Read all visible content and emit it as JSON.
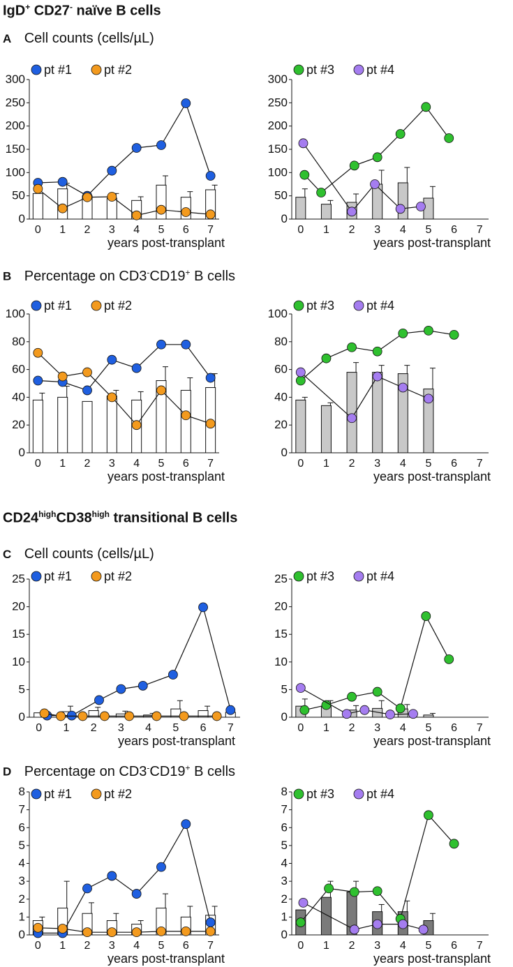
{
  "sections": [
    {
      "title_main": "IgD",
      "title_sup1": "+",
      "title_mid": " CD27",
      "title_sup2": "-",
      "title_end": " naïve B cells"
    },
    {
      "title_main": "CD24",
      "title_sup1": "high",
      "title_mid": "CD38",
      "title_sup2": "high",
      "title_end": " transitional B cells"
    }
  ],
  "panels": [
    {
      "letter": "A",
      "title": "Cell counts (cells/µL)"
    },
    {
      "letter": "B",
      "title_a": "Percentage on CD3",
      "title_sup1": "-",
      "title_b": "CD19",
      "title_sup2": "+",
      "title_c": " B cells"
    },
    {
      "letter": "C",
      "title": "Cell counts (cells/µL)"
    },
    {
      "letter": "D",
      "title_a": "Percentage on CD3",
      "title_sup1": "-",
      "title_b": "CD19",
      "title_sup2": "+",
      "title_c": " B cells"
    }
  ],
  "colors": {
    "pt1": "#1f5fe0",
    "pt2": "#f39a1e",
    "pt3": "#2fc02f",
    "pt4": "#a57df0",
    "bar_white": "#ffffff",
    "bar_light": "#c8c8c8",
    "bar_dark": "#7a7a7a"
  },
  "chart_data": [
    {
      "type": "bar+line",
      "panel": "A",
      "side": "left",
      "xlabel": "years post-transplant",
      "ylim": [
        0,
        300
      ],
      "yticks": [
        0,
        50,
        100,
        150,
        200,
        250,
        300
      ],
      "xticks": [
        0,
        1,
        2,
        3,
        4,
        5,
        6,
        7
      ],
      "bar_color": "white",
      "bars": [
        {
          "x": 0,
          "value": 55,
          "err": 0
        },
        {
          "x": 1,
          "value": 65,
          "err": 12
        },
        {
          "x": 2,
          "value": 50,
          "err": 0
        },
        {
          "x": 3,
          "value": 45,
          "err": 10
        },
        {
          "x": 4,
          "value": 40,
          "err": 8
        },
        {
          "x": 5,
          "value": 73,
          "err": 20
        },
        {
          "x": 6,
          "value": 47,
          "err": 12
        },
        {
          "x": 7,
          "value": 63,
          "err": 10
        }
      ],
      "series": [
        {
          "name": "pt #1",
          "color_key": "pt1",
          "points": [
            [
              0,
              78
            ],
            [
              1,
              80
            ],
            [
              2,
              50
            ],
            [
              3,
              104
            ],
            [
              4,
              153
            ],
            [
              5,
              159
            ],
            [
              6,
              249
            ],
            [
              7,
              93
            ]
          ]
        },
        {
          "name": "pt #2",
          "color_key": "pt2",
          "points": [
            [
              0,
              65
            ],
            [
              1,
              23
            ],
            [
              2,
              47
            ],
            [
              3,
              48
            ],
            [
              4,
              8
            ],
            [
              5,
              20
            ],
            [
              6,
              15
            ],
            [
              7,
              10
            ]
          ]
        }
      ]
    },
    {
      "type": "bar+line",
      "panel": "A",
      "side": "right",
      "xlabel": "years post-transplant",
      "ylim": [
        0,
        300
      ],
      "yticks": [
        0,
        50,
        100,
        150,
        200,
        250,
        300
      ],
      "xticks": [
        0,
        1,
        2,
        3,
        4,
        5,
        6,
        7
      ],
      "bar_color": "light",
      "bars": [
        {
          "x": 0,
          "value": 47,
          "err": 18
        },
        {
          "x": 1,
          "value": 32,
          "err": 8
        },
        {
          "x": 2,
          "value": 36,
          "err": 18
        },
        {
          "x": 3,
          "value": 75,
          "err": 30
        },
        {
          "x": 4,
          "value": 78,
          "err": 33
        },
        {
          "x": 5,
          "value": 45,
          "err": 25
        }
      ],
      "series": [
        {
          "name": "pt #3",
          "color_key": "pt3",
          "points": [
            [
              0.15,
              95
            ],
            [
              0.8,
              57
            ],
            [
              2.1,
              115
            ],
            [
              3.0,
              133
            ],
            [
              3.9,
              183
            ],
            [
              4.9,
              241
            ],
            [
              5.8,
              174
            ]
          ]
        },
        {
          "name": "pt #4",
          "color_key": "pt4",
          "points": [
            [
              0.1,
              163
            ],
            [
              2.0,
              16
            ],
            [
              2.9,
              75
            ],
            [
              3.9,
              22
            ],
            [
              4.7,
              27
            ]
          ]
        }
      ]
    },
    {
      "type": "bar+line",
      "panel": "B",
      "side": "left",
      "xlabel": "years post-transplant",
      "ylim": [
        0,
        100
      ],
      "yticks": [
        0,
        20,
        40,
        60,
        80,
        100
      ],
      "xticks": [
        0,
        1,
        2,
        3,
        4,
        5,
        6,
        7
      ],
      "bar_color": "white",
      "bars": [
        {
          "x": 0,
          "value": 38,
          "err": 5
        },
        {
          "x": 1,
          "value": 40,
          "err": 8
        },
        {
          "x": 2,
          "value": 37,
          "err": 0
        },
        {
          "x": 3,
          "value": 41,
          "err": 4
        },
        {
          "x": 4,
          "value": 38,
          "err": 6
        },
        {
          "x": 5,
          "value": 52,
          "err": 10
        },
        {
          "x": 6,
          "value": 45,
          "err": 9
        },
        {
          "x": 7,
          "value": 47,
          "err": 10
        }
      ],
      "series": [
        {
          "name": "pt #1",
          "color_key": "pt1",
          "points": [
            [
              0,
              52
            ],
            [
              1,
              51
            ],
            [
              2,
              45
            ],
            [
              3,
              67
            ],
            [
              4,
              61
            ],
            [
              5,
              78
            ],
            [
              6,
              78
            ],
            [
              7,
              54
            ]
          ]
        },
        {
          "name": "pt #2",
          "color_key": "pt2",
          "points": [
            [
              0,
              72
            ],
            [
              1,
              55
            ],
            [
              2,
              58
            ],
            [
              3,
              40
            ],
            [
              4,
              20
            ],
            [
              5,
              45
            ],
            [
              6,
              27
            ],
            [
              7,
              21
            ]
          ]
        }
      ]
    },
    {
      "type": "bar+line",
      "panel": "B",
      "side": "right",
      "xlabel": "years post-transplant",
      "ylim": [
        0,
        100
      ],
      "yticks": [
        0,
        20,
        40,
        60,
        80,
        100
      ],
      "xticks": [
        0,
        1,
        2,
        3,
        4,
        5,
        6,
        7
      ],
      "bar_color": "light",
      "bars": [
        {
          "x": 0,
          "value": 38,
          "err": 2
        },
        {
          "x": 1,
          "value": 34,
          "err": 2
        },
        {
          "x": 2,
          "value": 58,
          "err": 7
        },
        {
          "x": 3,
          "value": 58,
          "err": 5
        },
        {
          "x": 4,
          "value": 57,
          "err": 6
        },
        {
          "x": 5,
          "value": 46,
          "err": 15
        }
      ],
      "series": [
        {
          "name": "pt #3",
          "color_key": "pt3",
          "points": [
            [
              0,
              52
            ],
            [
              1,
              68
            ],
            [
              2,
              76
            ],
            [
              3,
              73
            ],
            [
              4,
              86
            ],
            [
              5,
              88
            ],
            [
              6,
              85
            ]
          ]
        },
        {
          "name": "pt #4",
          "color_key": "pt4",
          "points": [
            [
              0,
              58
            ],
            [
              2,
              25
            ],
            [
              3,
              55
            ],
            [
              4,
              47
            ],
            [
              5,
              39
            ]
          ]
        }
      ]
    },
    {
      "type": "bar+line",
      "panel": "C",
      "side": "left",
      "xlabel": "years post-transplant",
      "ylim": [
        0,
        25
      ],
      "yticks": [
        0,
        5,
        10,
        15,
        20,
        25
      ],
      "xticks": [
        0,
        1,
        2,
        3,
        4,
        5,
        6,
        7
      ],
      "bar_color": "white",
      "bars": [
        {
          "x": 0,
          "value": 0.8,
          "err": 0.2
        },
        {
          "x": 1,
          "value": 1.0,
          "err": 1.0
        },
        {
          "x": 2,
          "value": 1.2,
          "err": 0.6
        },
        {
          "x": 3,
          "value": 0.6,
          "err": 0.5
        },
        {
          "x": 4,
          "value": 0.4,
          "err": 0.3
        },
        {
          "x": 5,
          "value": 1.5,
          "err": 1.5
        },
        {
          "x": 6,
          "value": 1.2,
          "err": 0.8
        },
        {
          "x": 7,
          "value": 0.9,
          "err": 0
        }
      ],
      "series": [
        {
          "name": "pt #1",
          "color_key": "pt1",
          "points": [
            [
              0.3,
              0.3
            ],
            [
              1.2,
              0.3
            ],
            [
              2.2,
              3.1
            ],
            [
              3.0,
              5.1
            ],
            [
              3.8,
              5.7
            ],
            [
              4.9,
              7.7
            ],
            [
              6.0,
              19.9
            ],
            [
              7.0,
              1.3
            ]
          ]
        },
        {
          "name": "pt #2",
          "color_key": "pt2",
          "points": [
            [
              0.2,
              0.7
            ],
            [
              0.8,
              0.2
            ],
            [
              1.6,
              0.2
            ],
            [
              2.4,
              0.2
            ],
            [
              3.3,
              0.2
            ],
            [
              4.3,
              0.2
            ],
            [
              5.3,
              0.2
            ],
            [
              6.5,
              0.2
            ]
          ]
        }
      ]
    },
    {
      "type": "bar+line",
      "panel": "C",
      "side": "right",
      "xlabel": "years post-transplant",
      "ylim": [
        0,
        25
      ],
      "yticks": [
        0,
        5,
        10,
        15,
        20,
        25
      ],
      "xticks": [
        0,
        1,
        2,
        3,
        4,
        5,
        6,
        7
      ],
      "bar_color": "light",
      "bars": [
        {
          "x": 0,
          "value": 2.0,
          "err": 1.3
        },
        {
          "x": 1,
          "value": 2.0,
          "err": 1.0
        },
        {
          "x": 2,
          "value": 1.3,
          "err": 0.8
        },
        {
          "x": 3,
          "value": 1.6,
          "err": 1.4
        },
        {
          "x": 4,
          "value": 1.5,
          "err": 0.8
        },
        {
          "x": 5,
          "value": 0.4,
          "err": 0.3
        }
      ],
      "series": [
        {
          "name": "pt #3",
          "color_key": "pt3",
          "points": [
            [
              0.15,
              1.3
            ],
            [
              1.0,
              2.2
            ],
            [
              2.0,
              3.7
            ],
            [
              3.0,
              4.6
            ],
            [
              3.9,
              1.6
            ],
            [
              4.9,
              18.3
            ],
            [
              5.8,
              10.5
            ]
          ]
        },
        {
          "name": "pt #4",
          "color_key": "pt4",
          "points": [
            [
              0.0,
              5.3
            ],
            [
              1.8,
              0.6
            ],
            [
              2.5,
              1.3
            ],
            [
              3.5,
              0.5
            ],
            [
              4.4,
              0.6
            ]
          ]
        }
      ]
    },
    {
      "type": "bar+line",
      "panel": "D",
      "side": "left",
      "xlabel": "years post-transplant",
      "ylim": [
        0,
        8
      ],
      "yticks": [
        0,
        1,
        2,
        3,
        4,
        5,
        6,
        7,
        8
      ],
      "xticks": [
        0,
        1,
        2,
        3,
        4,
        5,
        6,
        7
      ],
      "bar_color": "white",
      "bars": [
        {
          "x": 0,
          "value": 0.8,
          "err": 0.2
        },
        {
          "x": 1,
          "value": 1.5,
          "err": 1.5
        },
        {
          "x": 2,
          "value": 1.2,
          "err": 0.6
        },
        {
          "x": 3,
          "value": 0.8,
          "err": 0.4
        },
        {
          "x": 4,
          "value": 0.6,
          "err": 0.2
        },
        {
          "x": 5,
          "value": 1.5,
          "err": 0.8
        },
        {
          "x": 6,
          "value": 1.0,
          "err": 0.6
        },
        {
          "x": 7,
          "value": 1.1,
          "err": 0.5
        }
      ],
      "series": [
        {
          "name": "pt #1",
          "color_key": "pt1",
          "points": [
            [
              0,
              0.1
            ],
            [
              1,
              0.1
            ],
            [
              2,
              2.6
            ],
            [
              3,
              3.3
            ],
            [
              4,
              2.3
            ],
            [
              5,
              3.8
            ],
            [
              6,
              6.2
            ],
            [
              7,
              0.7
            ]
          ]
        },
        {
          "name": "pt #2",
          "color_key": "pt2",
          "points": [
            [
              0,
              0.4
            ],
            [
              1,
              0.35
            ],
            [
              2,
              0.15
            ],
            [
              3,
              0.15
            ],
            [
              4,
              0.15
            ],
            [
              5,
              0.2
            ],
            [
              6,
              0.2
            ],
            [
              7,
              0.2
            ]
          ]
        }
      ]
    },
    {
      "type": "bar+line",
      "panel": "D",
      "side": "right",
      "xlabel": "years post-transplant",
      "ylim": [
        0,
        8
      ],
      "yticks": [
        0,
        1,
        2,
        3,
        4,
        5,
        6,
        7,
        8
      ],
      "xticks": [
        0,
        1,
        2,
        3,
        4,
        5,
        6,
        7
      ],
      "bar_color": "dark",
      "bars": [
        {
          "x": 0,
          "value": 1.4,
          "err": 0
        },
        {
          "x": 1,
          "value": 2.1,
          "err": 0.9
        },
        {
          "x": 2,
          "value": 2.4,
          "err": 0.6
        },
        {
          "x": 3,
          "value": 1.3,
          "err": 0.4
        },
        {
          "x": 4,
          "value": 1.3,
          "err": 0.6
        },
        {
          "x": 5,
          "value": 0.8,
          "err": 0.4
        }
      ],
      "series": [
        {
          "name": "pt #3",
          "color_key": "pt3",
          "points": [
            [
              0,
              0.7
            ],
            [
              1.1,
              2.6
            ],
            [
              2.1,
              2.4
            ],
            [
              3.0,
              2.45
            ],
            [
              3.9,
              0.9
            ],
            [
              5.0,
              6.7
            ],
            [
              6.0,
              5.1
            ]
          ]
        },
        {
          "name": "pt #4",
          "color_key": "pt4",
          "points": [
            [
              0.1,
              1.8
            ],
            [
              2.1,
              0.3
            ],
            [
              3.0,
              0.6
            ],
            [
              4.0,
              0.6
            ],
            [
              4.8,
              0.3
            ]
          ]
        }
      ]
    }
  ]
}
